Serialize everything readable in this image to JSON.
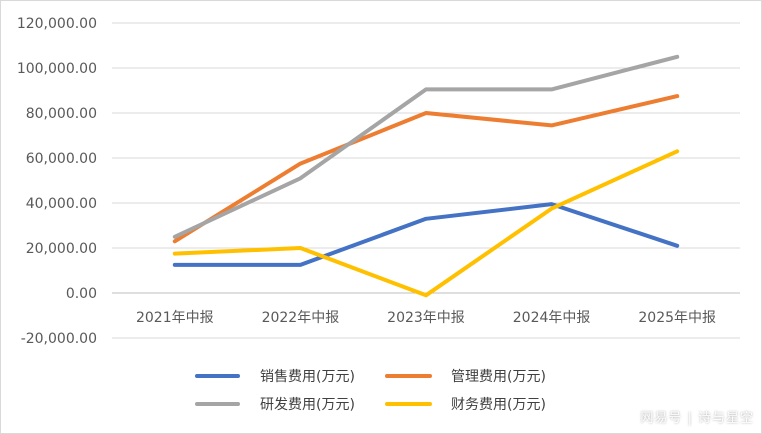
{
  "chart_data": {
    "type": "line",
    "categories": [
      "2021年中报",
      "2022年中报",
      "2023年中报",
      "2024年中报",
      "2025年中报"
    ],
    "ylim": [
      -20000,
      120000
    ],
    "yticks": [
      120000,
      100000,
      80000,
      60000,
      40000,
      20000,
      0,
      -20000
    ],
    "ytick_labels": [
      "120,000.00",
      "100,000.00",
      "80,000.00",
      "60,000.00",
      "40,000.00",
      "20,000.00",
      "0.00",
      "-20,000.00"
    ],
    "grid": true,
    "legend_position": "bottom",
    "series": [
      {
        "name": "销售费用(万元)",
        "color": "#4472C4",
        "values": [
          12500,
          12500,
          33000,
          39500,
          21000
        ]
      },
      {
        "name": "管理费用(万元)",
        "color": "#ED7D31",
        "values": [
          23000,
          57500,
          80000,
          74500,
          87500
        ]
      },
      {
        "name": "研发费用(万元)",
        "color": "#A5A5A5",
        "values": [
          25000,
          51000,
          90500,
          90500,
          105000
        ]
      },
      {
        "name": "财务费用(万元)",
        "color": "#FFC000",
        "values": [
          17500,
          20000,
          -1000,
          37500,
          63000
        ]
      }
    ]
  },
  "watermark": "网易号 | 诗与星空"
}
